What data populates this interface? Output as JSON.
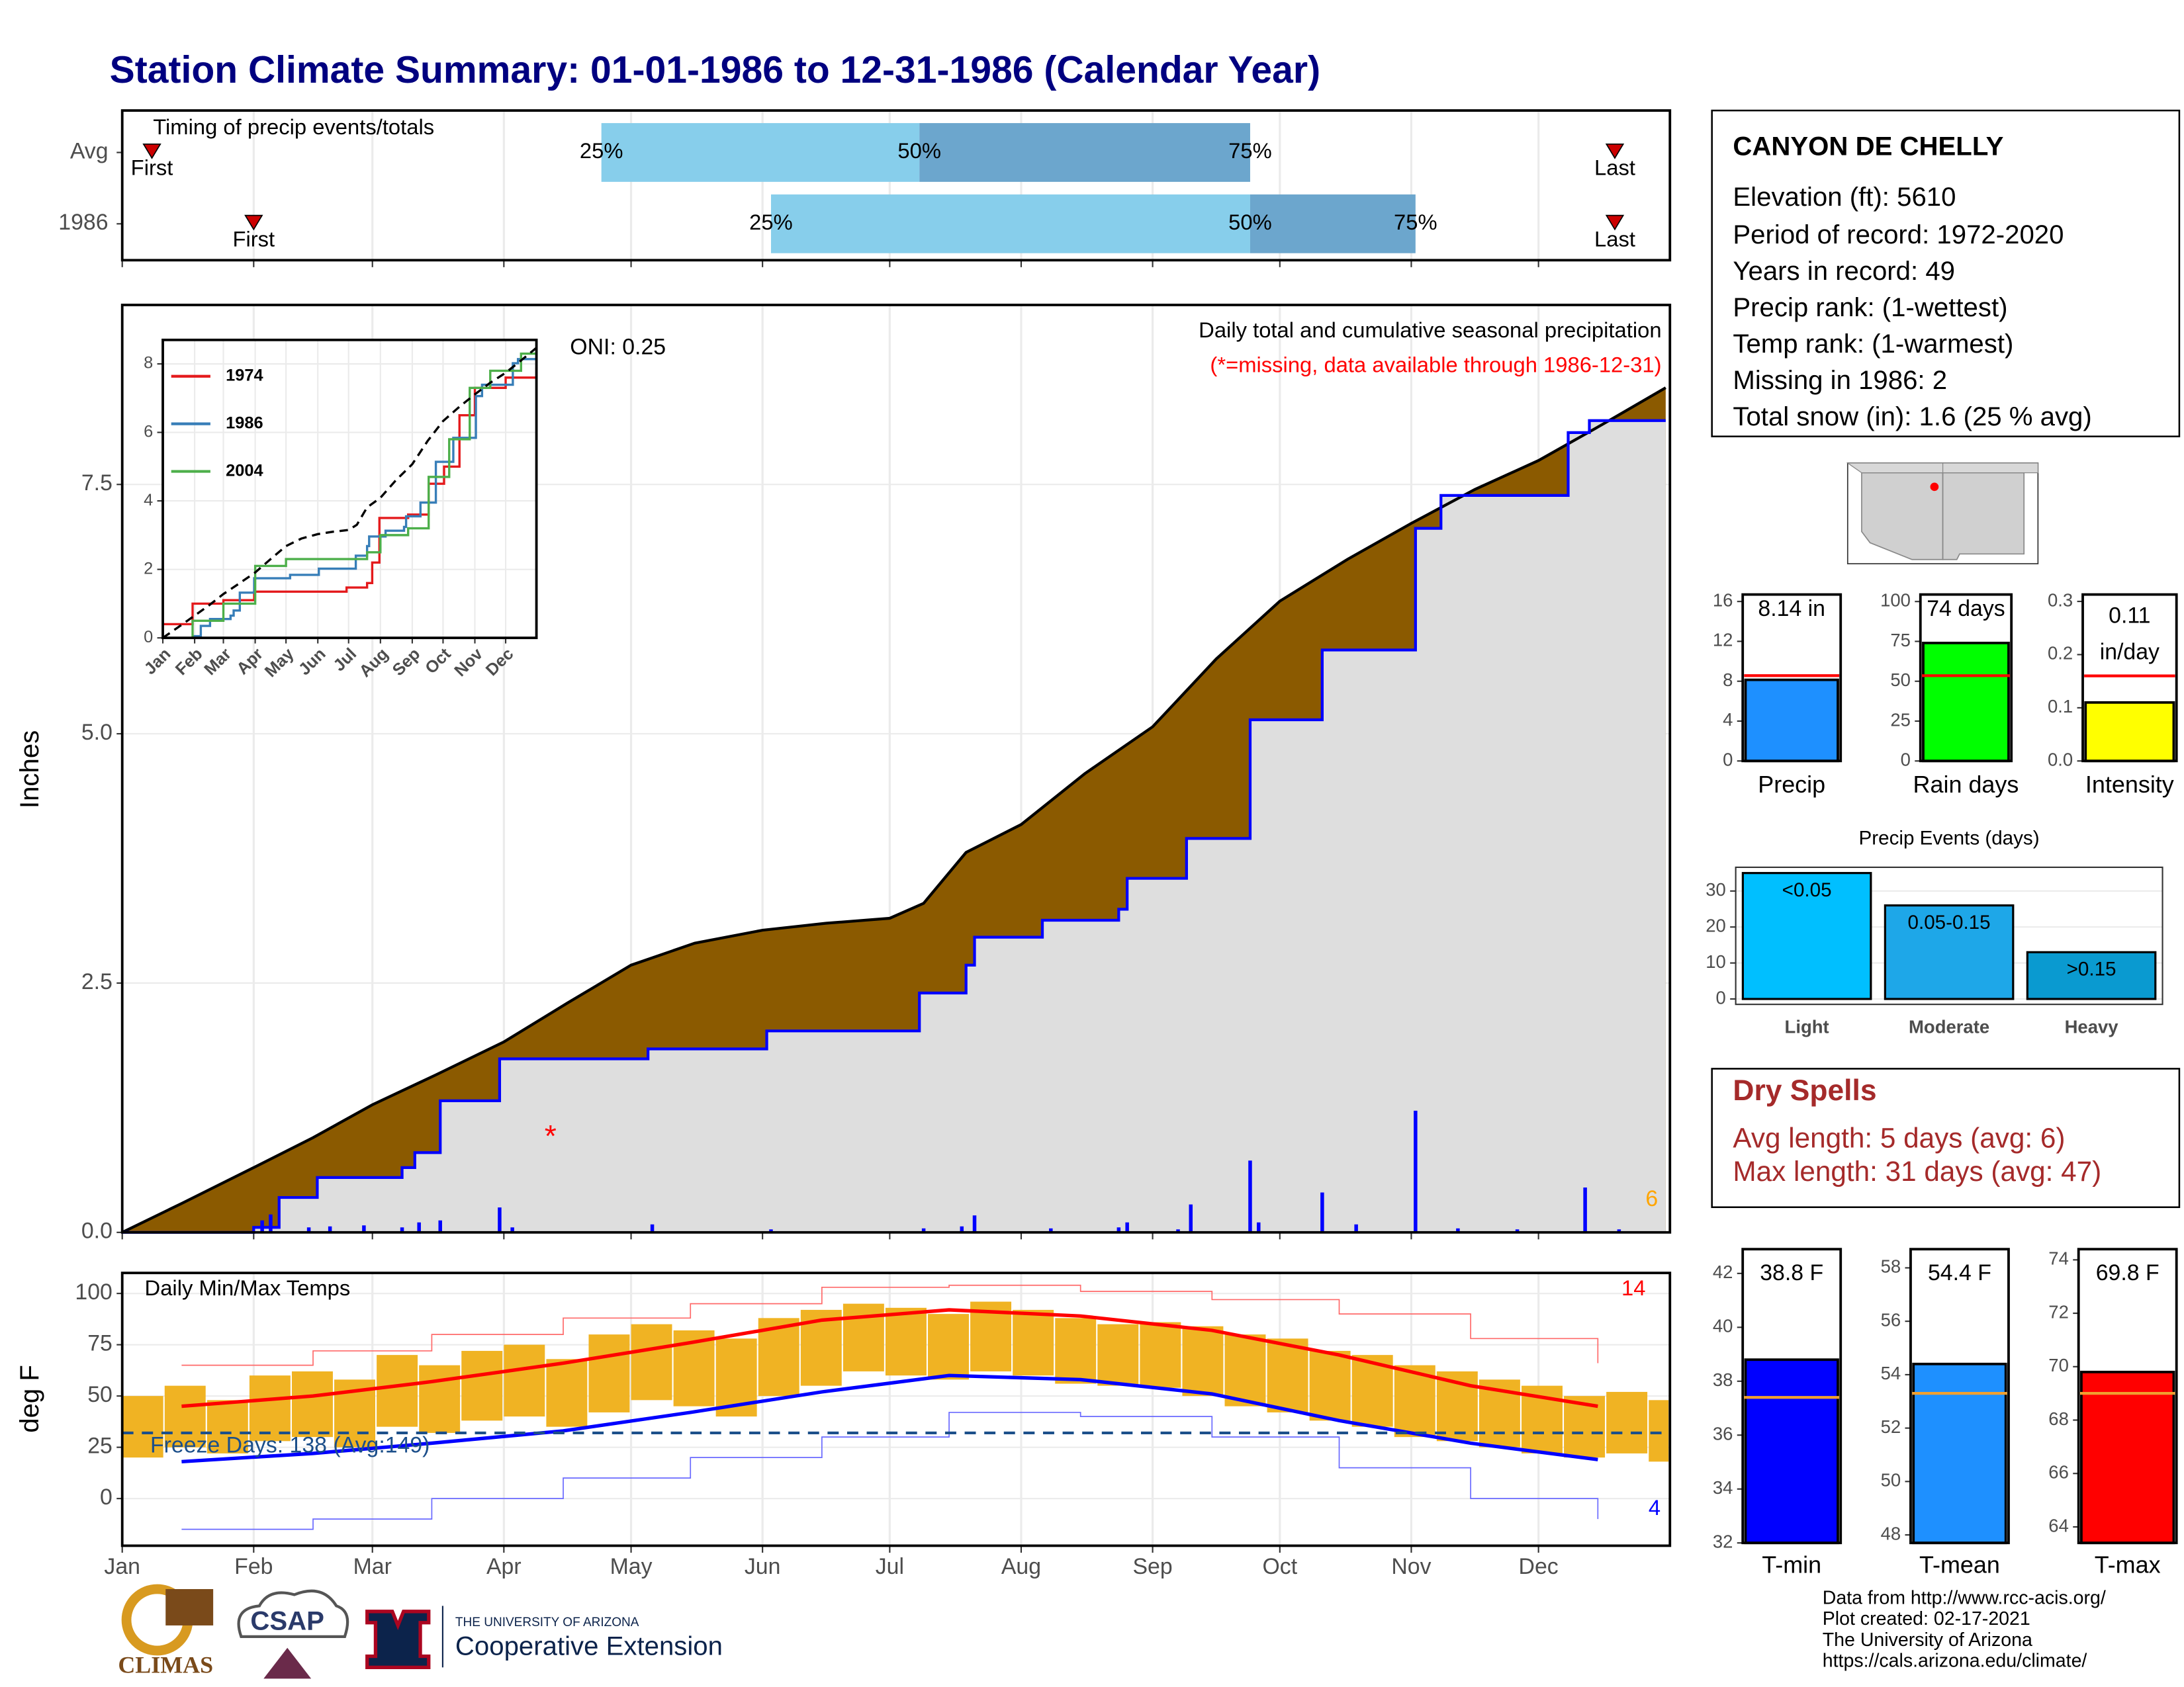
{
  "title": "Station Climate Summary: 01-01-1986 to 12-31-1986 (Calendar Year)",
  "station": {
    "name": "CANYON DE CHELLY",
    "lines": [
      "Elevation (ft): 5610",
      "Period of record: 1972-2020",
      "Years in record: 49",
      "Precip rank:  (1-wettest)",
      "Temp rank:  (1-warmest)",
      "Missing in 1986: 2",
      "Total snow (in): 1.6 (25 % avg)"
    ]
  },
  "dry_spells": {
    "title": "Dry Spells",
    "lines": [
      "Avg length: 5 days (avg: 6)",
      "Max length: 31 days (avg: 47)"
    ]
  },
  "footer": [
    "Data from http://www.rcc-acis.org/",
    "Plot created: 02-17-2021",
    "The University of Arizona",
    "https://cals.arizona.edu/climate/"
  ],
  "logos": {
    "climas": "CLIMAS",
    "csap": "CSAP",
    "university": "THE UNIVERSITY OF ARIZONA",
    "extension": "Cooperative Extension"
  },
  "chart_data": [
    {
      "type": "timing",
      "title": "Timing of precip events/totals",
      "xlim": [
        1,
        366
      ],
      "colors": [
        "#87ceeb",
        "#6ca6cd"
      ],
      "marker_color": "#cc0000",
      "labels": {
        "first": "First",
        "last": "Last",
        "q25": "25%",
        "q50": "50%",
        "q75": "75%"
      },
      "rows": [
        {
          "name": "Avg",
          "first": 8,
          "q25": 114,
          "q50": 189,
          "q75": 267,
          "last": 353
        },
        {
          "name": "1986",
          "first": 32,
          "q25": 154,
          "q50": 267,
          "q75": 306,
          "last": 353
        }
      ]
    },
    {
      "type": "cumulative",
      "ylabel": "Inches",
      "xlim": [
        1,
        366
      ],
      "ylim": [
        0,
        9.3
      ],
      "yticks": [
        {
          "value": 0,
          "label": "0.0"
        },
        2.5,
        {
          "value": 5,
          "label": "5.0"
        },
        7.5
      ],
      "grid": true,
      "oni": "ONI: 0.25",
      "description": "Daily total and cumulative seasonal precipitation",
      "note": "(*=missing, data available through 1986-12-31)",
      "count_label": "6",
      "series": [
        {
          "color": "#000000",
          "fill": "#8b5a00",
          "x": [
            1,
            15,
            32,
            46,
            60,
            75,
            91,
            106,
            121,
            136,
            152,
            167,
            182,
            190,
            200,
            213,
            228,
            244,
            259,
            274,
            290,
            305,
            320,
            335,
            350,
            365
          ],
          "values": [
            0,
            0.29,
            0.65,
            0.95,
            1.28,
            1.58,
            1.91,
            2.3,
            2.68,
            2.9,
            3.03,
            3.1,
            3.15,
            3.3,
            3.81,
            4.09,
            4.6,
            5.07,
            5.75,
            6.33,
            6.75,
            7.11,
            7.45,
            7.74,
            8.1,
            8.47
          ]
        },
        {
          "color": "#0000ff",
          "fill": "#dedede",
          "step": true,
          "x": [
            1,
            32,
            38,
            47,
            67,
            70,
            76,
            90,
            125,
            153,
            189,
            200,
            202,
            218,
            236,
            238,
            252,
            267,
            284,
            306,
            312,
            342,
            347,
            365
          ],
          "values": [
            0,
            0.05,
            0.35,
            0.55,
            0.65,
            0.8,
            1.32,
            1.74,
            1.84,
            2.02,
            2.4,
            2.68,
            2.96,
            3.13,
            3.24,
            3.55,
            3.95,
            5.14,
            5.84,
            7.06,
            7.39,
            8.02,
            8.14,
            8.14
          ]
        }
      ],
      "daily": {
        "color": "#0000ff",
        "x": [
          34,
          36,
          45,
          50,
          58,
          67,
          71,
          76,
          90,
          93,
          126,
          154,
          190,
          199,
          202,
          220,
          236,
          238,
          250,
          253,
          267,
          269,
          284,
          292,
          306,
          316,
          330,
          346,
          354
        ],
        "values": [
          0.12,
          0.18,
          0.05,
          0.06,
          0.07,
          0.05,
          0.1,
          0.12,
          0.25,
          0.05,
          0.08,
          0.03,
          0.04,
          0.06,
          0.17,
          0.04,
          0.05,
          0.1,
          0.03,
          0.28,
          0.72,
          0.1,
          0.4,
          0.08,
          1.22,
          0.04,
          0.03,
          0.45,
          0.03
        ]
      },
      "missing": {
        "x": [
          102
        ],
        "values": [
          1.0
        ],
        "symbol": "*",
        "color": "#ff0000"
      }
    },
    {
      "type": "line",
      "xlim": [
        1,
        365
      ],
      "ylim": [
        0,
        8.7
      ],
      "yticks": [
        0,
        2,
        4,
        6,
        8
      ],
      "grid": true,
      "xticks": [
        {
          "value": 1,
          "label": "Jan"
        },
        {
          "value": 32,
          "label": "Feb"
        },
        {
          "value": 60,
          "label": "Mar"
        },
        {
          "value": 91,
          "label": "Apr"
        },
        {
          "value": 121,
          "label": "May"
        },
        {
          "value": 152,
          "label": "Jun"
        },
        {
          "value": 182,
          "label": "Jul"
        },
        {
          "value": 213,
          "label": "Aug"
        },
        {
          "value": 244,
          "label": "Sep"
        },
        {
          "value": 274,
          "label": "Oct"
        },
        {
          "value": 305,
          "label": "Nov"
        },
        {
          "value": 335,
          "label": "Dec"
        }
      ],
      "series": [
        {
          "name": "1974",
          "color": "#e41a1c",
          "step": true,
          "x": [
            1,
            30,
            60,
            90,
            180,
            200,
            205,
            212,
            240,
            260,
            275,
            290,
            305,
            335,
            365
          ],
          "values": [
            0.4,
            1.0,
            1.1,
            1.35,
            1.47,
            1.6,
            2.2,
            3.5,
            3.6,
            4.5,
            5.0,
            6.5,
            7.3,
            7.6,
            7.9
          ]
        },
        {
          "name": "1986",
          "color": "#377eb8",
          "step": true,
          "x": [
            1,
            32,
            38,
            47,
            67,
            70,
            76,
            90,
            125,
            153,
            189,
            200,
            202,
            218,
            236,
            238,
            252,
            267,
            284,
            306,
            312,
            342,
            347,
            365
          ],
          "values": [
            0,
            0.05,
            0.35,
            0.55,
            0.65,
            0.8,
            1.32,
            1.74,
            1.84,
            2.02,
            2.4,
            2.68,
            2.96,
            3.13,
            3.24,
            3.55,
            3.95,
            5.14,
            5.84,
            7.06,
            7.39,
            8.02,
            8.14,
            8.14
          ]
        },
        {
          "name": "2004",
          "color": "#4daf4a",
          "step": true,
          "x": [
            1,
            30,
            60,
            91,
            121,
            180,
            200,
            213,
            240,
            260,
            280,
            300,
            320,
            350,
            365
          ],
          "values": [
            0,
            0.5,
            1.0,
            2.1,
            2.3,
            2.3,
            2.5,
            3.0,
            3.2,
            4.7,
            5.8,
            7.3,
            7.8,
            8.3,
            8.7
          ]
        },
        {
          "color": "#000000",
          "dash": true,
          "x": [
            1,
            15,
            32,
            46,
            60,
            75,
            91,
            106,
            121,
            136,
            152,
            167,
            182,
            190,
            200,
            213,
            228,
            244,
            259,
            274,
            290,
            305,
            320,
            335,
            350,
            365
          ],
          "values": [
            0,
            0.29,
            0.65,
            0.95,
            1.28,
            1.58,
            1.91,
            2.3,
            2.68,
            2.9,
            3.03,
            3.1,
            3.15,
            3.3,
            3.81,
            4.09,
            4.6,
            5.07,
            5.75,
            6.33,
            6.75,
            7.11,
            7.45,
            7.74,
            8.1,
            8.47
          ]
        }
      ]
    },
    {
      "type": "temperature",
      "title": "Daily Min/Max Temps",
      "ylabel": "deg F",
      "xlim": [
        1,
        366
      ],
      "ylim": [
        -23,
        110
      ],
      "yticks": [
        0,
        25,
        50,
        75,
        100
      ],
      "grid": true,
      "xticks": [
        {
          "value": 1,
          "label": "Jan"
        },
        {
          "value": 32,
          "label": "Feb"
        },
        {
          "value": 60,
          "label": "Mar"
        },
        {
          "value": 91,
          "label": "Apr"
        },
        {
          "value": 121,
          "label": "May"
        },
        {
          "value": 152,
          "label": "Jun"
        },
        {
          "value": 182,
          "label": "Jul"
        },
        {
          "value": 213,
          "label": "Aug"
        },
        {
          "value": 244,
          "label": "Sep"
        },
        {
          "value": 274,
          "label": "Oct"
        },
        {
          "value": 305,
          "label": "Nov"
        },
        {
          "value": 335,
          "label": "Dec"
        }
      ],
      "freeze_line": 32,
      "freeze_color": "#1c4f8a",
      "freeze_label": "Freeze Days: 138 (Avg:149)",
      "high_count": "14",
      "low_count": "4",
      "daily": {
        "color": "#f0b323",
        "x": [
          1,
          11,
          21,
          31,
          41,
          51,
          61,
          71,
          81,
          91,
          101,
          111,
          121,
          131,
          141,
          151,
          161,
          171,
          181,
          191,
          201,
          211,
          221,
          231,
          241,
          251,
          261,
          271,
          281,
          291,
          301,
          311,
          321,
          331,
          341,
          351,
          361
        ],
        "min": [
          20,
          25,
          22,
          28,
          30,
          25,
          35,
          32,
          38,
          40,
          35,
          42,
          48,
          45,
          40,
          50,
          55,
          62,
          60,
          58,
          62,
          60,
          56,
          55,
          54,
          50,
          45,
          42,
          38,
          35,
          30,
          28,
          25,
          22,
          20,
          22,
          18
        ],
        "max": [
          50,
          55,
          48,
          60,
          62,
          58,
          70,
          65,
          72,
          75,
          68,
          80,
          85,
          82,
          78,
          88,
          92,
          95,
          93,
          90,
          96,
          92,
          88,
          85,
          86,
          84,
          80,
          78,
          72,
          70,
          65,
          62,
          58,
          55,
          50,
          52,
          48
        ]
      },
      "series": [
        {
          "color": "#ff0000",
          "width": 2.5,
          "x": [
            15,
            46,
            74,
            105,
            135,
            166,
            196,
            227,
            258,
            288,
            319,
            349
          ],
          "values": [
            45,
            50,
            57,
            66,
            76,
            87,
            92,
            89,
            82,
            70,
            55,
            45
          ]
        },
        {
          "color": "#0000ff",
          "width": 2.5,
          "x": [
            15,
            46,
            74,
            105,
            135,
            166,
            196,
            227,
            258,
            288,
            319,
            349
          ],
          "values": [
            18,
            22,
            27,
            33,
            42,
            52,
            60,
            58,
            51,
            38,
            27,
            19
          ]
        },
        {
          "color": "#ff6a6a",
          "width": 0.8,
          "step": true,
          "x": [
            15,
            46,
            74,
            105,
            135,
            166,
            196,
            227,
            258,
            288,
            319,
            349
          ],
          "values": [
            65,
            72,
            80,
            88,
            95,
            103,
            104,
            101,
            97,
            90,
            78,
            66
          ]
        },
        {
          "color": "#6a6aff",
          "width": 0.8,
          "step": true,
          "x": [
            15,
            46,
            74,
            105,
            135,
            166,
            196,
            227,
            258,
            288,
            319,
            349
          ],
          "values": [
            -15,
            -10,
            0,
            10,
            20,
            30,
            42,
            40,
            30,
            15,
            0,
            -10
          ]
        }
      ]
    },
    {
      "type": "bar",
      "xlabel": "Precip",
      "ylim": [
        0,
        16.7
      ],
      "yticks": [
        0,
        4,
        8,
        12,
        16
      ],
      "color": "#1e90ff",
      "values": [
        8.14
      ],
      "value_labels": [
        "8.14 in"
      ],
      "average": 8.56,
      "average_color": "#ff0000"
    },
    {
      "type": "bar",
      "xlabel": "Rain days",
      "ylim": [
        0,
        104.4
      ],
      "yticks": [
        0,
        25,
        50,
        75,
        100
      ],
      "color": "#00ff00",
      "values": [
        74
      ],
      "value_labels": [
        "74 days"
      ],
      "average": 53.5,
      "average_color": "#ff0000"
    },
    {
      "type": "bar",
      "xlabel": "Intensity",
      "ylim": [
        0,
        0.313
      ],
      "yticks": [
        {
          "value": 0,
          "label": "0.0"
        },
        0.1,
        0.2,
        0.3
      ],
      "color": "#ffff00",
      "values": [
        0.11
      ],
      "unit": "in/day",
      "average": 0.16,
      "average_color": "#ff0000"
    },
    {
      "type": "bar",
      "title": "Precip Events (days)",
      "ylim": [
        -1.5,
        36.6
      ],
      "yticks": [
        0,
        10,
        20,
        30
      ],
      "grid": true,
      "categories": [
        "Light",
        "Moderate",
        "Heavy"
      ],
      "values": [
        35,
        26,
        13
      ],
      "bar_labels": [
        "<0.05",
        "0.05-0.15",
        ">0.15"
      ],
      "colors": [
        "#00bfff",
        "#1ea7e8",
        "#0a9ad0"
      ]
    },
    {
      "type": "bar",
      "xlabel": "T-min",
      "ylim": [
        32,
        42.9
      ],
      "yticks": [
        32,
        34,
        36,
        38,
        40,
        42
      ],
      "color": "#0000ff",
      "values": [
        38.8
      ],
      "value_labels": [
        "38.8 F"
      ],
      "average": 37.4,
      "average_color": "#f0a030"
    },
    {
      "type": "bar",
      "xlabel": "T-mean",
      "ylim": [
        47.7,
        58.7
      ],
      "yticks": [
        48,
        50,
        52,
        54,
        56,
        58
      ],
      "color": "#1e90ff",
      "values": [
        54.4
      ],
      "value_labels": [
        "54.4 F"
      ],
      "average": 53.3,
      "average_color": "#f0a030"
    },
    {
      "type": "bar",
      "xlabel": "T-max",
      "ylim": [
        63.4,
        74.4
      ],
      "yticks": [
        64,
        66,
        68,
        70,
        72,
        74
      ],
      "color": "#ff0000",
      "values": [
        69.8
      ],
      "value_labels": [
        "69.8 F"
      ],
      "average": 69.0,
      "average_color": "#f0a030"
    }
  ]
}
